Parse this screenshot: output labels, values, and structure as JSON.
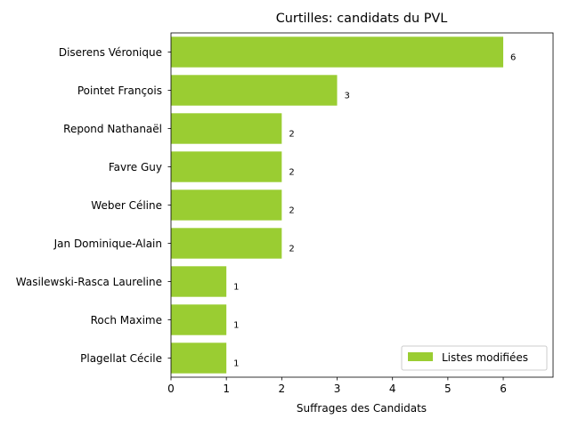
{
  "colors": {
    "bar": "#9acd32",
    "axis": "#000000",
    "legend_border": "#cccccc"
  },
  "chart_data": {
    "type": "bar",
    "orientation": "horizontal",
    "title": "Curtilles: candidats du PVL",
    "xlabel": "Suffrages des Candidats",
    "ylabel": "",
    "categories": [
      "Diserens Véronique",
      "Pointet François",
      "Repond Nathanaël",
      "Favre Guy",
      "Weber Céline",
      "Jan Dominique-Alain",
      "Wasilewski-Rasca Laureline",
      "Roch Maxime",
      "Plagellat Cécile"
    ],
    "series": [
      {
        "name": "Listes modifiées",
        "values": [
          6,
          3,
          2,
          2,
          2,
          2,
          1,
          1,
          1
        ]
      }
    ],
    "xlim": [
      0,
      6.9
    ],
    "xticks": [
      "0",
      "1",
      "2",
      "3",
      "4",
      "5",
      "6"
    ],
    "data_labels": [
      "6",
      "3",
      "2",
      "2",
      "2",
      "2",
      "1",
      "1",
      "1"
    ],
    "legend_position": "lower-right",
    "grid": false
  }
}
